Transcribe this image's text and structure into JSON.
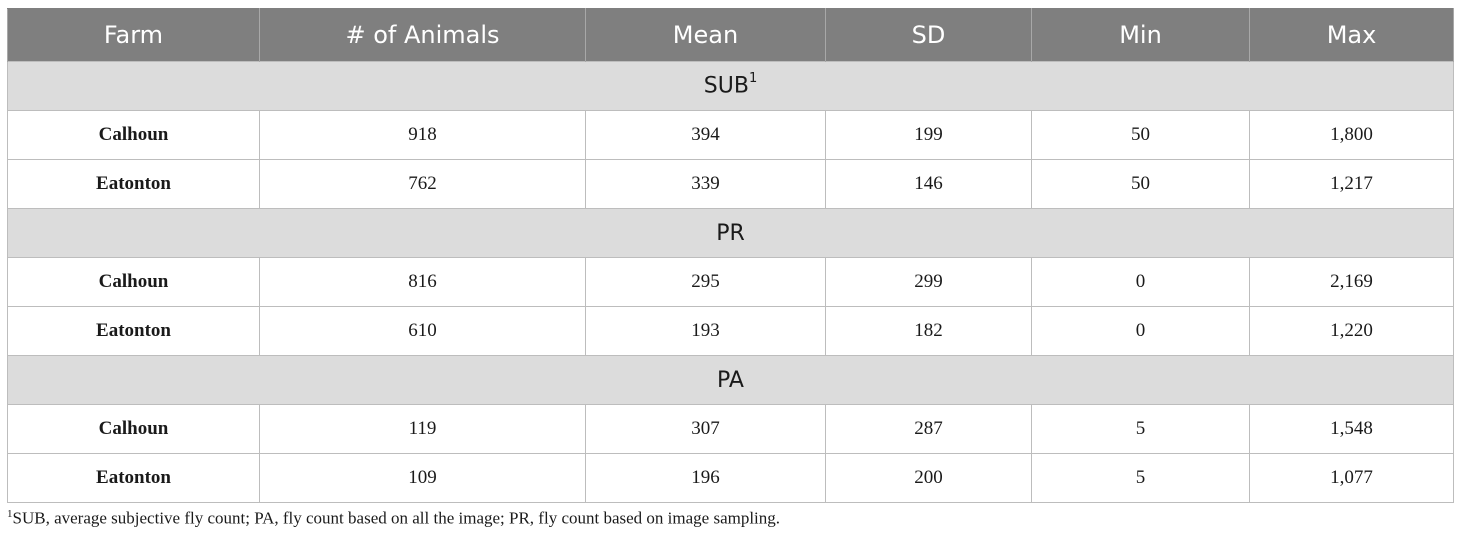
{
  "columns": [
    "Farm",
    "# of Animals",
    "Mean",
    "SD",
    "Min",
    "Max"
  ],
  "groups": [
    {
      "label": "SUB",
      "marker": "1",
      "rows": [
        {
          "farm": "Calhoun",
          "animals": "918",
          "mean": "394",
          "sd": "199",
          "min": "50",
          "max": "1,800"
        },
        {
          "farm": "Eatonton",
          "animals": "762",
          "mean": "339",
          "sd": "146",
          "min": "50",
          "max": "1,217"
        }
      ]
    },
    {
      "label": "PR",
      "marker": "",
      "rows": [
        {
          "farm": "Calhoun",
          "animals": "816",
          "mean": "295",
          "sd": "299",
          "min": "0",
          "max": "2,169"
        },
        {
          "farm": "Eatonton",
          "animals": "610",
          "mean": "193",
          "sd": "182",
          "min": "0",
          "max": "1,220"
        }
      ]
    },
    {
      "label": "PA",
      "marker": "",
      "rows": [
        {
          "farm": "Calhoun",
          "animals": "119",
          "mean": "307",
          "sd": "287",
          "min": "5",
          "max": "1,548"
        },
        {
          "farm": "Eatonton",
          "animals": "109",
          "mean": "196",
          "sd": "200",
          "min": "5",
          "max": "1,077"
        }
      ]
    }
  ],
  "footnote": {
    "marker": "1",
    "text": "SUB, average subjective fly count; PA, fly count based on all the image; PR, fly count based on image sampling."
  }
}
